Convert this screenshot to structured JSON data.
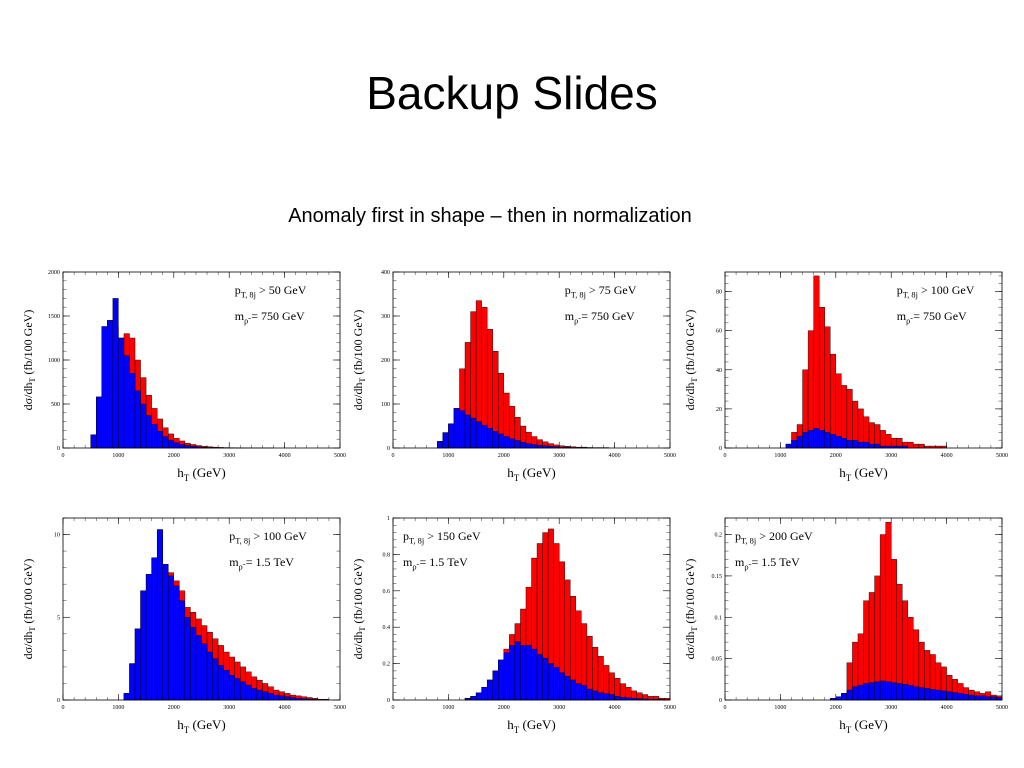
{
  "slide": {
    "title": "Backup Slides",
    "subtitle": "Anomaly first in shape – then in normalization"
  },
  "colors": {
    "total": "#ff0000",
    "sm": "#0000ff"
  },
  "chart_data": [
    {
      "type": "histogram",
      "cut_label": "p_T, 8j > 50 GeV",
      "mass_label": "m_ρ̃ = 750 GeV",
      "xlabel": "h_T (GeV)",
      "ylabel": "dσ/dh_T (fb/100 GeV)",
      "xlim": [
        0,
        5000
      ],
      "ylim": [
        0,
        2000
      ],
      "xticks": [
        0,
        1000,
        2000,
        3000,
        4000,
        5000
      ],
      "yticks": [
        0,
        500,
        1000,
        1500,
        2000
      ],
      "bin_edges_start": 500,
      "bin_width": 100,
      "series": [
        {
          "values": [
            150,
            580,
            1380,
            1450,
            1380,
            1250,
            1300,
            1250,
            1000,
            800,
            600,
            450,
            330,
            230,
            160,
            110,
            80,
            55,
            40,
            28,
            20,
            14,
            10,
            7,
            5,
            4,
            3,
            2,
            2,
            1,
            1,
            1,
            1,
            0,
            0,
            0,
            0,
            0,
            0,
            0,
            0,
            0,
            0,
            0,
            0
          ]
        },
        {
          "values": [
            150,
            580,
            1380,
            1450,
            1700,
            1250,
            1050,
            850,
            650,
            500,
            370,
            270,
            190,
            130,
            90,
            60,
            40,
            28,
            19,
            13,
            9,
            6,
            4,
            3,
            2,
            1,
            1,
            1,
            0,
            0,
            0,
            0,
            0,
            0,
            0,
            0,
            0,
            0,
            0,
            0,
            0,
            0,
            0,
            0,
            0
          ]
        }
      ]
    },
    {
      "type": "histogram",
      "cut_label": "p_T, 8j > 75 GeV",
      "mass_label": "m_ρ̃ = 750 GeV",
      "xlabel": "h_T (GeV)",
      "ylabel": "dσ/dh_T (fb/100 GeV)",
      "xlim": [
        0,
        5000
      ],
      "ylim": [
        0,
        400
      ],
      "xticks": [
        0,
        1000,
        2000,
        3000,
        4000,
        5000
      ],
      "yticks": [
        0,
        100,
        200,
        300,
        400
      ],
      "bin_edges_start": 800,
      "bin_width": 100,
      "series": [
        {
          "values": [
            15,
            35,
            55,
            90,
            180,
            240,
            310,
            335,
            320,
            270,
            220,
            170,
            125,
            95,
            70,
            50,
            36,
            26,
            19,
            14,
            10,
            7,
            5,
            4,
            3,
            2,
            2,
            1,
            1,
            1,
            1,
            0,
            0,
            0,
            0,
            0,
            0,
            0,
            0,
            0,
            0,
            0
          ]
        },
        {
          "values": [
            15,
            35,
            55,
            90,
            85,
            75,
            68,
            60,
            52,
            45,
            38,
            32,
            26,
            21,
            17,
            13,
            10,
            8,
            6,
            5,
            4,
            3,
            2,
            2,
            1,
            1,
            1,
            1,
            0,
            0,
            0,
            0,
            0,
            0,
            0,
            0,
            0,
            0,
            0,
            0,
            0,
            0
          ]
        }
      ]
    },
    {
      "type": "histogram",
      "cut_label": "p_T, 8j > 100 GeV",
      "mass_label": "m_ρ̃ = 750 GeV",
      "xlabel": "h_T (GeV)",
      "ylabel": "dσ/dh_T (fb/100 GeV)",
      "xlim": [
        0,
        5000
      ],
      "ylim": [
        0,
        90
      ],
      "xticks": [
        0,
        1000,
        2000,
        3000,
        4000,
        5000
      ],
      "yticks": [
        0,
        20,
        40,
        60,
        80
      ],
      "bin_edges_start": 1100,
      "bin_width": 100,
      "series": [
        {
          "values": [
            2,
            8,
            12,
            40,
            60,
            88,
            72,
            62,
            48,
            38,
            32,
            30,
            24,
            20,
            16,
            13,
            12,
            9,
            7,
            5,
            5,
            3,
            3,
            2,
            2,
            1,
            1,
            1,
            1,
            0,
            0,
            0,
            0,
            0,
            0,
            0,
            0,
            0,
            0
          ]
        },
        {
          "values": [
            2,
            4,
            6,
            8,
            9,
            10,
            9,
            8,
            7,
            6,
            5,
            4,
            4,
            3,
            3,
            2,
            2,
            1,
            1,
            1,
            1,
            1,
            0,
            0,
            0,
            0,
            0,
            0,
            0,
            0,
            0,
            0,
            0,
            0,
            0,
            0,
            0,
            0,
            0
          ]
        }
      ]
    },
    {
      "type": "histogram",
      "cut_label": "p_T, 8j > 100 GeV",
      "mass_label": "m_ρ̃ = 1.5 TeV",
      "xlabel": "h_T (GeV)",
      "ylabel": "dσ/dh_T (fb/100 GeV)",
      "xlim": [
        0,
        5000
      ],
      "ylim": [
        0,
        11
      ],
      "xticks": [
        0,
        1000,
        2000,
        3000,
        4000,
        5000
      ],
      "yticks": [
        0,
        5,
        10
      ],
      "bin_edges_start": 1100,
      "bin_width": 100,
      "series": [
        {
          "values": [
            0.4,
            2.2,
            4.3,
            6.6,
            7.6,
            8.6,
            10.3,
            8.2,
            7.7,
            7.2,
            6.6,
            5.6,
            5.3,
            4.9,
            4.5,
            4.1,
            3.7,
            3.3,
            2.9,
            2.6,
            2.3,
            2.0,
            1.7,
            1.4,
            1.2,
            1.0,
            0.8,
            0.6,
            0.5,
            0.4,
            0.3,
            0.25,
            0.2,
            0.15,
            0.1,
            0.05,
            0.05,
            0,
            0
          ]
        },
        {
          "values": [
            0.4,
            2.2,
            4.3,
            6.6,
            7.6,
            8.6,
            10.3,
            8.2,
            7.5,
            6.9,
            6.0,
            5.0,
            4.4,
            3.9,
            3.4,
            2.9,
            2.5,
            2.1,
            1.8,
            1.5,
            1.3,
            1.1,
            0.9,
            0.7,
            0.6,
            0.5,
            0.4,
            0.3,
            0.25,
            0.2,
            0.15,
            0.1,
            0.08,
            0.06,
            0.04,
            0.02,
            0.02,
            0,
            0
          ]
        }
      ]
    },
    {
      "type": "histogram",
      "cut_label": "p_T, 8j > 150 GeV",
      "mass_label": "m_ρ̃ = 1.5 TeV",
      "xlabel": "h_T (GeV)",
      "ylabel": "dσ/dh_T (fb/100 GeV)",
      "xlim": [
        0,
        5000
      ],
      "ylim": [
        0,
        1
      ],
      "xticks": [
        0,
        1000,
        2000,
        3000,
        4000,
        5000
      ],
      "yticks": [
        0,
        0.2,
        0.4,
        0.6,
        0.8,
        1
      ],
      "bin_edges_start": 1300,
      "bin_width": 100,
      "series": [
        {
          "values": [
            0.01,
            0.02,
            0.04,
            0.07,
            0.11,
            0.16,
            0.22,
            0.28,
            0.36,
            0.42,
            0.5,
            0.62,
            0.78,
            0.86,
            0.92,
            0.94,
            0.86,
            0.76,
            0.66,
            0.57,
            0.49,
            0.42,
            0.35,
            0.29,
            0.24,
            0.19,
            0.15,
            0.12,
            0.09,
            0.07,
            0.05,
            0.04,
            0.03,
            0.02,
            0.02,
            0.01,
            0.01
          ]
        },
        {
          "values": [
            0.01,
            0.02,
            0.04,
            0.07,
            0.11,
            0.16,
            0.22,
            0.26,
            0.3,
            0.32,
            0.3,
            0.3,
            0.28,
            0.25,
            0.23,
            0.2,
            0.18,
            0.15,
            0.13,
            0.11,
            0.09,
            0.08,
            0.06,
            0.05,
            0.04,
            0.035,
            0.03,
            0.02,
            0.015,
            0.012,
            0.01,
            0.008,
            0.006,
            0.005,
            0.004,
            0.003,
            0.002
          ]
        }
      ]
    },
    {
      "type": "histogram",
      "cut_label": "p_T, 8j > 200 GeV",
      "mass_label": "m_ρ̃ = 1.5 TeV",
      "xlabel": "h_T (GeV)",
      "ylabel": "dσ/dh_T (fb/100 GeV)",
      "xlim": [
        0,
        5000
      ],
      "ylim": [
        0,
        0.22
      ],
      "xticks": [
        0,
        1000,
        2000,
        3000,
        4000,
        5000
      ],
      "yticks": [
        0,
        0.05,
        0.1,
        0.15,
        0.2
      ],
      "bin_edges_start": 1900,
      "bin_width": 100,
      "series": [
        {
          "values": [
            0.002,
            0.004,
            0.008,
            0.045,
            0.07,
            0.08,
            0.12,
            0.13,
            0.15,
            0.2,
            0.215,
            0.17,
            0.14,
            0.12,
            0.1,
            0.085,
            0.07,
            0.06,
            0.055,
            0.045,
            0.04,
            0.03,
            0.025,
            0.02,
            0.015,
            0.012,
            0.01,
            0.008,
            0.01,
            0.006,
            0.005
          ]
        },
        {
          "values": [
            0.002,
            0.004,
            0.008,
            0.012,
            0.016,
            0.018,
            0.02,
            0.021,
            0.022,
            0.023,
            0.022,
            0.021,
            0.02,
            0.019,
            0.018,
            0.016,
            0.015,
            0.014,
            0.013,
            0.012,
            0.011,
            0.01,
            0.009,
            0.008,
            0.007,
            0.006,
            0.005,
            0.005,
            0.004,
            0.004,
            0.003
          ]
        }
      ]
    }
  ]
}
